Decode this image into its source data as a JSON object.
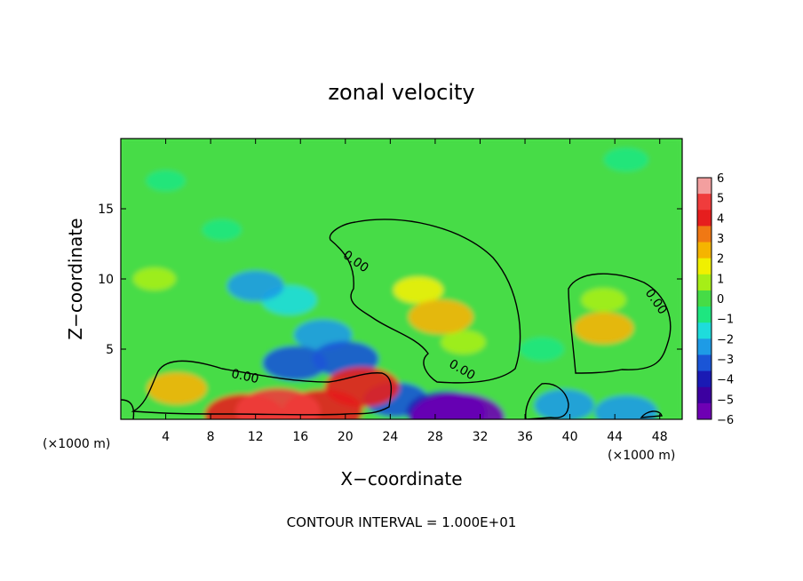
{
  "chart_data": {
    "type": "heatmap",
    "title": "zonal velocity",
    "xlabel": "X−coordinate",
    "ylabel": "Z−coordinate",
    "x_unit_left": "(×1000 m)",
    "x_unit_right": "(×1000 m)",
    "xlim": [
      0,
      50
    ],
    "ylim": [
      0,
      20
    ],
    "x_ticks": [
      4,
      8,
      12,
      16,
      20,
      24,
      28,
      32,
      36,
      40,
      44,
      48
    ],
    "y_ticks": [
      5,
      10,
      15
    ],
    "contour_interval": "CONTOUR INTERVAL = 1.000E+01",
    "contour_label": "0.00",
    "colorbar": {
      "min": -6,
      "max": 6,
      "labels": [
        "6",
        "5",
        "4",
        "3",
        "2",
        "1",
        "0",
        "−1",
        "−2",
        "−3",
        "−4",
        "−5",
        "−6"
      ],
      "colors": [
        "#f39f9f",
        "#f03c3c",
        "#e61e1e",
        "#f07814",
        "#f5b400",
        "#f0f000",
        "#a6ee17",
        "#46dc46",
        "#1ee680",
        "#1edcdc",
        "#1e9be6",
        "#1a55d6",
        "#1a1ab4",
        "#3c00a0",
        "#6e00b4"
      ]
    },
    "features": [
      {
        "x": 28.5,
        "z": 7.3,
        "value": 3.0
      },
      {
        "x": 26.5,
        "z": 9.2,
        "value": 1.5
      },
      {
        "x": 30.5,
        "z": 5.5,
        "value": 1.0
      },
      {
        "x": 43.0,
        "z": 6.5,
        "value": 2.5
      },
      {
        "x": 43.0,
        "z": 8.5,
        "value": 1.0
      },
      {
        "x": 12.0,
        "z": 9.5,
        "value": -2.2
      },
      {
        "x": 15.0,
        "z": 8.5,
        "value": -2.0
      },
      {
        "x": 15.5,
        "z": 4.0,
        "value": -3.0
      },
      {
        "x": 20.0,
        "z": 4.3,
        "value": -3.2
      },
      {
        "x": 18.0,
        "z": 6.0,
        "value": -2.3
      },
      {
        "x": 5.0,
        "z": 2.2,
        "value": 2.5
      },
      {
        "x": 21.5,
        "z": 2.3,
        "value": 4.0
      },
      {
        "x": 14.0,
        "z": 0.6,
        "value": 5.0
      },
      {
        "x": 18.0,
        "z": 0.6,
        "value": 4.5
      },
      {
        "x": 11.0,
        "z": 0.3,
        "value": 4.5
      },
      {
        "x": 24.5,
        "z": 1.4,
        "value": -3.0
      },
      {
        "x": 29.0,
        "z": 0.5,
        "value": -4.5
      },
      {
        "x": 30.0,
        "z": 0.1,
        "value": -6.0
      },
      {
        "x": 39.5,
        "z": 1.0,
        "value": -2.5
      },
      {
        "x": 45.0,
        "z": 0.5,
        "value": -2.8
      },
      {
        "x": 9.0,
        "z": 13.5,
        "value": -0.5
      },
      {
        "x": 3.0,
        "z": 10.0,
        "value": 0.8
      },
      {
        "x": 37.5,
        "z": 5.0,
        "value": -1.0
      },
      {
        "x": 45.0,
        "z": 18.5,
        "value": -1.0
      },
      {
        "x": 4.0,
        "z": 17.0,
        "value": -0.5
      }
    ],
    "background_value": 0.2
  }
}
